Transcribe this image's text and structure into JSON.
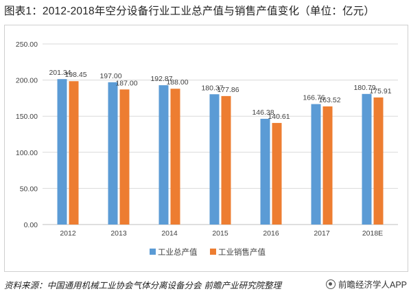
{
  "title": "图表1：2012-2018年空分设备行业工业总产值与销售产值变化（单位：亿元）",
  "footer": {
    "source": "资料来源：中国通用机械工业协会气体分离设备分会 前瞻产业研究院整理",
    "brand": "前瞻经济学人APP"
  },
  "colors": {
    "series1": "#5B9BD5",
    "series2": "#ED7D31",
    "grid": "#D9D9D9",
    "axis": "#BFBFBF"
  },
  "chart_data": {
    "type": "bar",
    "categories": [
      "2012",
      "2013",
      "2014",
      "2015",
      "2016",
      "2017",
      "2018E"
    ],
    "series": [
      {
        "name": "工业总产值",
        "values": [
          201.34,
          197.0,
          192.87,
          180.37,
          146.38,
          166.76,
          180.79
        ],
        "labels": [
          "201.34",
          "197.00",
          "192.87",
          "180.37",
          "146.38",
          "166.76",
          "180.79"
        ]
      },
      {
        "name": "工业销售产值",
        "values": [
          198.45,
          187.0,
          188.0,
          177.86,
          140.61,
          163.52,
          175.91
        ],
        "labels": [
          "198.45",
          "187.00",
          "188.00",
          "177.86",
          "140.61",
          "163.52",
          "175.91"
        ]
      }
    ],
    "yticks": [
      "0.00",
      "50.00",
      "100.00",
      "150.00",
      "200.00",
      "250.00"
    ],
    "ylim": [
      0,
      250
    ],
    "grid": true,
    "legend": "bottom"
  }
}
